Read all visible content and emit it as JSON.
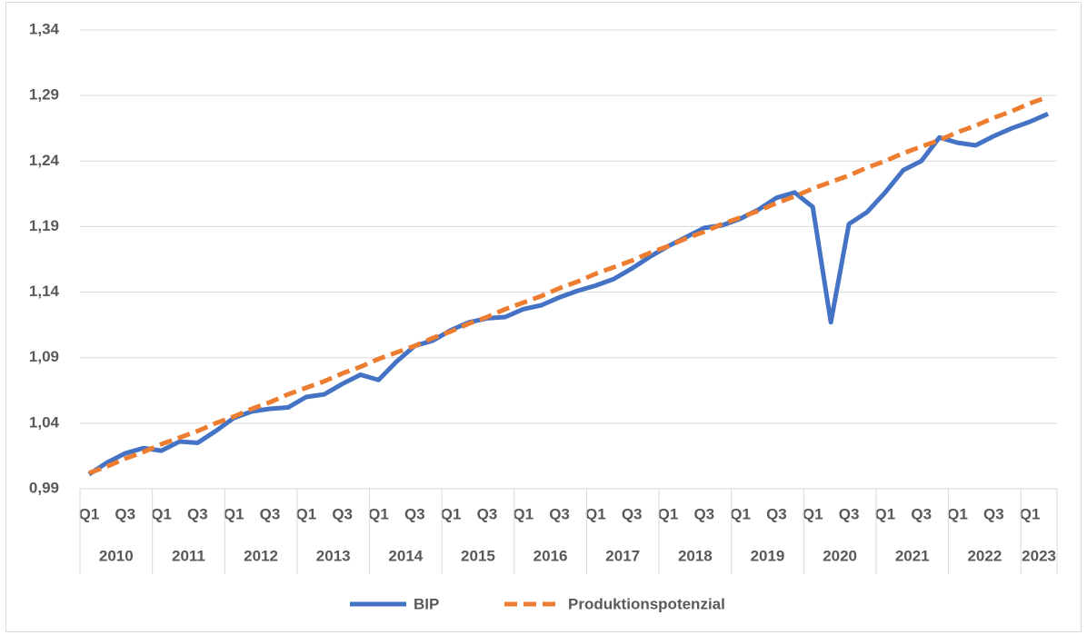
{
  "chart_data": {
    "type": "line",
    "categories": [
      "Q1",
      null,
      "Q3",
      null,
      "Q1",
      null,
      "Q3",
      null,
      "Q1",
      null,
      "Q3",
      null,
      "Q1",
      null,
      "Q3",
      null,
      "Q1",
      null,
      "Q3",
      null,
      "Q1",
      null,
      "Q3",
      null,
      "Q1",
      null,
      "Q3",
      null,
      "Q1",
      null,
      "Q3",
      null,
      "Q1",
      null,
      "Q3",
      null,
      "Q1",
      null,
      "Q3",
      null,
      "Q1",
      null,
      "Q3",
      null,
      "Q1",
      null,
      "Q3",
      null,
      "Q1",
      null,
      "Q3",
      null,
      "Q1",
      null
    ],
    "x_groups": [
      {
        "label": "2010",
        "count": 4
      },
      {
        "label": "2011",
        "count": 4
      },
      {
        "label": "2012",
        "count": 4
      },
      {
        "label": "2013",
        "count": 4
      },
      {
        "label": "2014",
        "count": 4
      },
      {
        "label": "2015",
        "count": 4
      },
      {
        "label": "2016",
        "count": 4
      },
      {
        "label": "2017",
        "count": 4
      },
      {
        "label": "2018",
        "count": 4
      },
      {
        "label": "2019",
        "count": 4
      },
      {
        "label": "2020",
        "count": 4
      },
      {
        "label": "2021",
        "count": 4
      },
      {
        "label": "2022",
        "count": 4
      },
      {
        "label": "2023",
        "count": 2
      }
    ],
    "series": [
      {
        "name": "BIP",
        "color": "#4472c4",
        "line_style": "solid",
        "values": [
          1.001,
          1.01,
          1.017,
          1.021,
          1.019,
          1.026,
          1.025,
          1.034,
          1.044,
          1.049,
          1.051,
          1.052,
          1.06,
          1.062,
          1.07,
          1.077,
          1.073,
          1.087,
          1.099,
          1.103,
          1.111,
          1.117,
          1.12,
          1.121,
          1.127,
          1.13,
          1.136,
          1.141,
          1.145,
          1.15,
          1.158,
          1.167,
          1.175,
          1.182,
          1.189,
          1.191,
          1.196,
          1.203,
          1.212,
          1.216,
          1.205,
          1.117,
          1.192,
          1.201,
          1.216,
          1.233,
          1.24,
          1.258,
          1.254,
          1.252,
          1.259,
          1.265,
          1.27,
          1.276
        ]
      },
      {
        "name": "Produktionspotenzial",
        "color": "#ed7d31",
        "line_style": "dashed",
        "values": [
          1.002,
          1.007,
          1.013,
          1.018,
          1.024,
          1.029,
          1.034,
          1.04,
          1.045,
          1.051,
          1.056,
          1.062,
          1.067,
          1.072,
          1.078,
          1.083,
          1.089,
          1.094,
          1.099,
          1.105,
          1.11,
          1.116,
          1.121,
          1.127,
          1.132,
          1.137,
          1.143,
          1.148,
          1.154,
          1.159,
          1.164,
          1.17,
          1.175,
          1.181,
          1.186,
          1.192,
          1.197,
          1.202,
          1.208,
          1.213,
          1.219,
          1.224,
          1.229,
          1.235,
          1.24,
          1.246,
          1.251,
          1.256,
          1.262,
          1.267,
          1.273,
          1.278,
          1.284,
          1.289
        ]
      }
    ],
    "ylim": [
      0.99,
      1.34
    ],
    "yticks": [
      {
        "value": 0.99,
        "label": "0,99"
      },
      {
        "value": 1.04,
        "label": "1,04"
      },
      {
        "value": 1.09,
        "label": "1,09"
      },
      {
        "value": 1.14,
        "label": "1,14"
      },
      {
        "value": 1.19,
        "label": "1,19"
      },
      {
        "value": 1.24,
        "label": "1,24"
      },
      {
        "value": 1.29,
        "label": "1,29"
      },
      {
        "value": 1.34,
        "label": "1,34"
      }
    ],
    "grid": true,
    "legend": "bottom"
  }
}
